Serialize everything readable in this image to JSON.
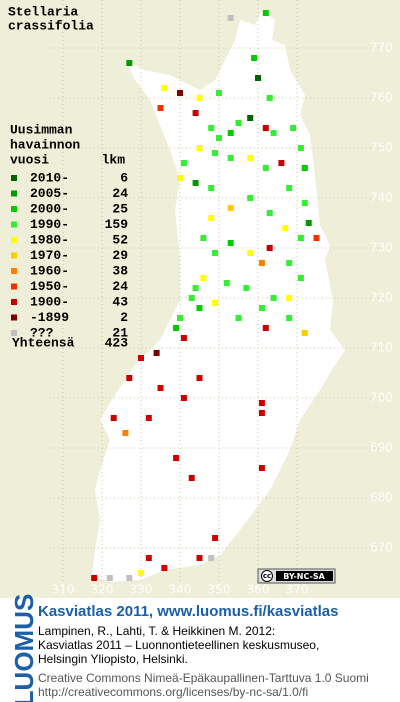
{
  "title": [
    "Stellaria",
    "crassifolia"
  ],
  "legend": {
    "heading": [
      "Uusimman",
      "havainnon",
      "vuosi"
    ],
    "count_header": "lkm",
    "items": [
      {
        "label": "2010-",
        "count": 6,
        "color": "#006400"
      },
      {
        "label": "2005-",
        "count": 24,
        "color": "#009a00"
      },
      {
        "label": "2000-",
        "count": 25,
        "color": "#00cc00"
      },
      {
        "label": "1990-",
        "count": 159,
        "color": "#33ee33"
      },
      {
        "label": "1980-",
        "count": 52,
        "color": "#ffff00"
      },
      {
        "label": "1970-",
        "count": 29,
        "color": "#ffcc00"
      },
      {
        "label": "1960-",
        "count": 38,
        "color": "#ff8000"
      },
      {
        "label": "1950-",
        "count": 24,
        "color": "#ee3300"
      },
      {
        "label": "1900-",
        "count": 43,
        "color": "#cc0000"
      },
      {
        "label": "-1899",
        "count": 2,
        "color": "#800000"
      },
      {
        "label": "???",
        "count": 21,
        "color": "#c0c0c0"
      }
    ],
    "total_label": "Yhteensä",
    "total": 423
  },
  "xticks": [
    310,
    320,
    330,
    340,
    350,
    360,
    370
  ],
  "yticks": [
    670,
    680,
    690,
    700,
    710,
    720,
    730,
    740,
    750,
    760,
    770
  ],
  "squares": [
    [
      362,
      777,
      2
    ],
    [
      327,
      767,
      1
    ],
    [
      359,
      768,
      2
    ],
    [
      360,
      764,
      0
    ],
    [
      336,
      762,
      4
    ],
    [
      340,
      761,
      9
    ],
    [
      345,
      760,
      4
    ],
    [
      350,
      761,
      3
    ],
    [
      363,
      760,
      3
    ],
    [
      335,
      758,
      7
    ],
    [
      344,
      757,
      8
    ],
    [
      348,
      754,
      3
    ],
    [
      350,
      752,
      3
    ],
    [
      353,
      753,
      2
    ],
    [
      355,
      755,
      3
    ],
    [
      358,
      756,
      0
    ],
    [
      362,
      754,
      8
    ],
    [
      364,
      753,
      3
    ],
    [
      369,
      754,
      3
    ],
    [
      371,
      750,
      3
    ],
    [
      372,
      746,
      2
    ],
    [
      349,
      749,
      3
    ],
    [
      345,
      750,
      4
    ],
    [
      341,
      747,
      3
    ],
    [
      340,
      744,
      4
    ],
    [
      344,
      743,
      1
    ],
    [
      348,
      742,
      3
    ],
    [
      353,
      748,
      3
    ],
    [
      358,
      748,
      4
    ],
    [
      362,
      746,
      3
    ],
    [
      366,
      747,
      8
    ],
    [
      368,
      742,
      3
    ],
    [
      372,
      739,
      3
    ],
    [
      373,
      735,
      1
    ],
    [
      375,
      732,
      7
    ],
    [
      371,
      732,
      3
    ],
    [
      367,
      734,
      4
    ],
    [
      363,
      737,
      3
    ],
    [
      358,
      740,
      3
    ],
    [
      353,
      738,
      5
    ],
    [
      348,
      736,
      4
    ],
    [
      346,
      732,
      3
    ],
    [
      349,
      729,
      3
    ],
    [
      353,
      731,
      2
    ],
    [
      358,
      729,
      4
    ],
    [
      361,
      727,
      6
    ],
    [
      363,
      730,
      8
    ],
    [
      368,
      727,
      3
    ],
    [
      371,
      724,
      3
    ],
    [
      368,
      720,
      4
    ],
    [
      364,
      720,
      3
    ],
    [
      361,
      718,
      3
    ],
    [
      357,
      722,
      3
    ],
    [
      352,
      723,
      3
    ],
    [
      346,
      724,
      4
    ],
    [
      344,
      722,
      3
    ],
    [
      343,
      720,
      3
    ],
    [
      345,
      718,
      2
    ],
    [
      349,
      719,
      4
    ],
    [
      340,
      716,
      3
    ],
    [
      339,
      714,
      2
    ],
    [
      341,
      712,
      8
    ],
    [
      355,
      716,
      3
    ],
    [
      362,
      714,
      8
    ],
    [
      368,
      716,
      3
    ],
    [
      372,
      713,
      5
    ],
    [
      334,
      709,
      9
    ],
    [
      330,
      708,
      8
    ],
    [
      327,
      704,
      8
    ],
    [
      335,
      702,
      8
    ],
    [
      345,
      704,
      8
    ],
    [
      361,
      699,
      8
    ],
    [
      361,
      697,
      8
    ],
    [
      326,
      693,
      6
    ],
    [
      323,
      696,
      8
    ],
    [
      339,
      688,
      8
    ],
    [
      343,
      684,
      8
    ],
    [
      361,
      686,
      8
    ],
    [
      332,
      668,
      8
    ],
    [
      336,
      666,
      8
    ],
    [
      345,
      668,
      8
    ],
    [
      349,
      672,
      8
    ],
    [
      318,
      664,
      8
    ],
    [
      322,
      664,
      10
    ],
    [
      330,
      665,
      4
    ],
    [
      327,
      664,
      10
    ],
    [
      353,
      776,
      10
    ],
    [
      348,
      668,
      10
    ],
    [
      332,
      696,
      8
    ],
    [
      341,
      700,
      8
    ]
  ],
  "badge": {
    "cc": "cc",
    "text": "BY-NC-SA"
  },
  "footer": {
    "logo": "LUOMUS",
    "headline": "Kasviatlas 2011, www.luomus.fi/kasviatlas",
    "citation": [
      "Lampinen, R., Lahti, T. & Heikkinen M. 2012:",
      "Kasviatlas 2011 – Luonnontieteellinen keskusmuseo,",
      "Helsingin Yliopisto, Helsinki."
    ],
    "license": [
      "Creative Commons Nimeä-Epäkaupallinen-Tarttuva 1.0 Suomi",
      "http://creativecommons.org/licenses/by-nc-sa/1.0/fi"
    ]
  }
}
